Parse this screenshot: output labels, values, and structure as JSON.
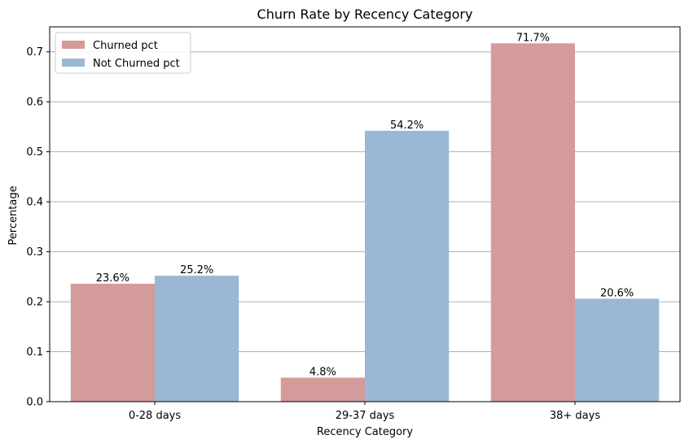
{
  "chart_data": {
    "type": "bar",
    "title": "Churn Rate by Recency Category",
    "xlabel": "Recency Category",
    "ylabel": "Percentage",
    "categories": [
      "0-28 days",
      "29-37 days",
      "38+ days"
    ],
    "series": [
      {
        "name": "Churned pct",
        "values": [
          0.236,
          0.048,
          0.717
        ],
        "labels": [
          "23.6%",
          "4.8%",
          "71.7%"
        ],
        "color": "#d49b9b"
      },
      {
        "name": "Not Churned pct",
        "values": [
          0.252,
          0.542,
          0.206
        ],
        "labels": [
          "25.2%",
          "54.2%",
          "20.6%"
        ],
        "color": "#9ab8d5"
      }
    ],
    "ylim": [
      0,
      0.75
    ],
    "yticks": [
      0.0,
      0.1,
      0.2,
      0.3,
      0.4,
      0.5,
      0.6,
      0.7
    ],
    "ytick_labels": [
      "0.0",
      "0.1",
      "0.2",
      "0.3",
      "0.4",
      "0.5",
      "0.6",
      "0.7"
    ],
    "grid": "y",
    "grid_color": "#b0b0b0",
    "legend": "top-left"
  }
}
